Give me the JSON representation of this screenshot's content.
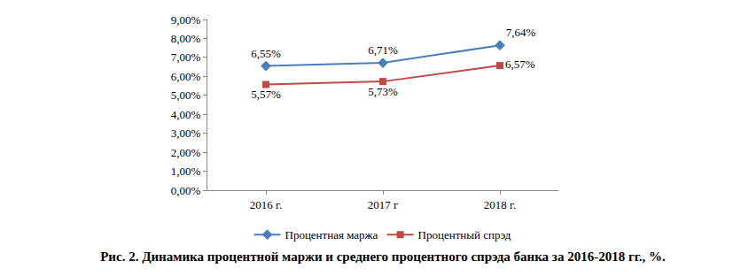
{
  "chart_data": {
    "type": "line",
    "title": "Рис. 2. Динамика процентной маржи и среднего процентного спрэда банка за 2016-2018 гг., %.",
    "categories": [
      "2016 г.",
      "2017 г",
      "2018 г."
    ],
    "series": [
      {
        "name": "Процентная маржа",
        "color": "#4a7ebb",
        "marker": "diamond",
        "values": [
          6.55,
          6.71,
          7.64
        ],
        "value_labels": [
          "6,55%",
          "6,71%",
          "7,64%"
        ]
      },
      {
        "name": "Процентный спрэд",
        "color": "#be4b48",
        "marker": "square",
        "values": [
          5.57,
          5.73,
          6.57
        ],
        "value_labels": [
          "5,57%",
          "5,73%",
          "6,57%"
        ]
      }
    ],
    "ylim": [
      0,
      9
    ],
    "yticks": [
      {
        "value": 0,
        "label": "0,00%"
      },
      {
        "value": 1,
        "label": "1,00%"
      },
      {
        "value": 2,
        "label": "2,00%"
      },
      {
        "value": 3,
        "label": "3,00%"
      },
      {
        "value": 4,
        "label": "4,00%"
      },
      {
        "value": 5,
        "label": "5,00%"
      },
      {
        "value": 6,
        "label": "6,00%"
      },
      {
        "value": 7,
        "label": "7,00%"
      },
      {
        "value": 8,
        "label": "8,00%"
      },
      {
        "value": 9,
        "label": "9,00%"
      }
    ],
    "grid": false,
    "legend": "bottom",
    "data_labels": true
  }
}
